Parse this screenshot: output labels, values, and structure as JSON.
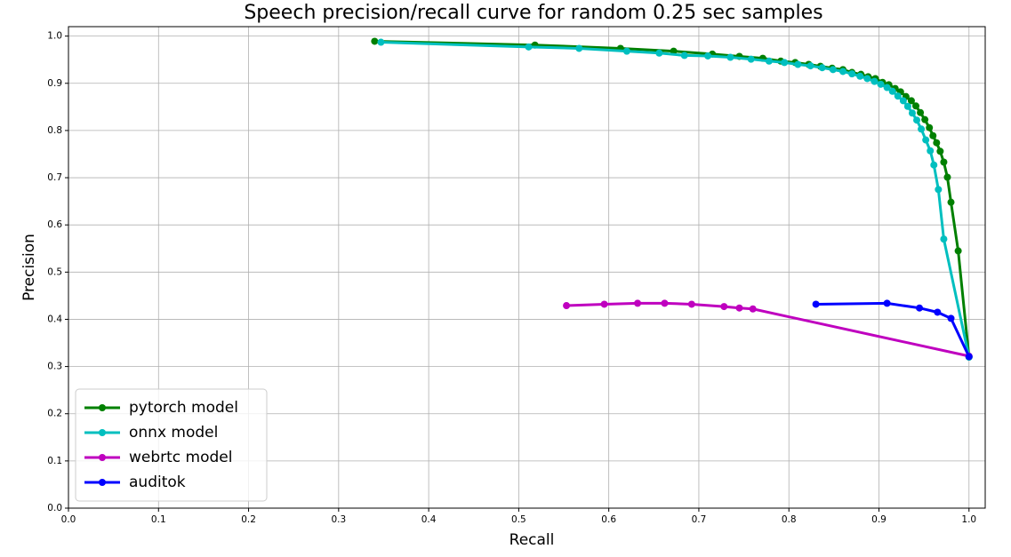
{
  "chart_data": {
    "type": "line",
    "title": "Speech precision/recall curve for random 0.25 sec samples",
    "x_label": "Recall",
    "y_label": "Precision",
    "xlim": [
      0,
      1.018
    ],
    "ylim": [
      0,
      1.02
    ],
    "xticks": [
      {
        "value": 0,
        "label": "0.0"
      },
      0.1,
      0.2,
      0.3,
      0.4,
      0.5,
      0.6,
      0.7,
      0.8,
      0.9,
      {
        "value": 1,
        "label": "1.0"
      }
    ],
    "yticks": [
      {
        "value": 0,
        "label": "0.0"
      },
      0.1,
      0.2,
      0.3,
      0.4,
      0.5,
      0.6,
      0.7,
      0.8,
      0.9,
      {
        "value": 1,
        "label": "1.0"
      }
    ],
    "grid": true,
    "legend": "lower left",
    "series": [
      {
        "name": "pytorch model",
        "color": "#008000",
        "x": [
          0.34,
          0.518,
          0.613,
          0.672,
          0.715,
          0.745,
          0.771,
          0.791,
          0.807,
          0.822,
          0.835,
          0.848,
          0.86,
          0.87,
          0.88,
          0.888,
          0.896,
          0.904,
          0.911,
          0.918,
          0.924,
          0.93,
          0.936,
          0.941,
          0.946,
          0.951,
          0.956,
          0.96,
          0.964,
          0.968,
          0.972,
          0.976,
          0.98,
          0.988,
          1.0
        ],
        "values": [
          0.989,
          0.981,
          0.974,
          0.968,
          0.962,
          0.957,
          0.953,
          0.947,
          0.944,
          0.94,
          0.936,
          0.932,
          0.929,
          0.923,
          0.919,
          0.914,
          0.91,
          0.902,
          0.897,
          0.889,
          0.882,
          0.872,
          0.863,
          0.852,
          0.838,
          0.823,
          0.806,
          0.789,
          0.774,
          0.756,
          0.733,
          0.701,
          0.648,
          0.545,
          0.32
        ]
      },
      {
        "name": "onnx model",
        "color": "#00bfbf",
        "x": [
          0.347,
          0.511,
          0.567,
          0.62,
          0.656,
          0.684,
          0.71,
          0.735,
          0.758,
          0.778,
          0.795,
          0.81,
          0.824,
          0.837,
          0.849,
          0.86,
          0.87,
          0.879,
          0.887,
          0.895,
          0.902,
          0.909,
          0.915,
          0.921,
          0.927,
          0.932,
          0.937,
          0.942,
          0.947,
          0.952,
          0.957,
          0.961,
          0.966,
          0.972,
          1.0
        ],
        "values": [
          0.987,
          0.977,
          0.974,
          0.968,
          0.964,
          0.959,
          0.958,
          0.955,
          0.951,
          0.947,
          0.944,
          0.94,
          0.937,
          0.933,
          0.929,
          0.925,
          0.92,
          0.915,
          0.91,
          0.904,
          0.898,
          0.891,
          0.883,
          0.873,
          0.863,
          0.851,
          0.837,
          0.822,
          0.803,
          0.78,
          0.757,
          0.727,
          0.675,
          0.57,
          0.32
        ]
      },
      {
        "name": "webrtc model",
        "color": "#bf00bf",
        "x": [
          0.553,
          0.595,
          0.632,
          0.662,
          0.692,
          0.728,
          0.745,
          0.76,
          1.0
        ],
        "values": [
          0.429,
          0.432,
          0.434,
          0.434,
          0.432,
          0.427,
          0.424,
          0.422,
          0.322
        ]
      },
      {
        "name": "auditok",
        "color": "#0000ff",
        "x": [
          0.83,
          0.909,
          0.945,
          0.965,
          0.98,
          1.0
        ],
        "values": [
          0.432,
          0.434,
          0.424,
          0.415,
          0.402,
          0.321
        ]
      }
    ]
  }
}
